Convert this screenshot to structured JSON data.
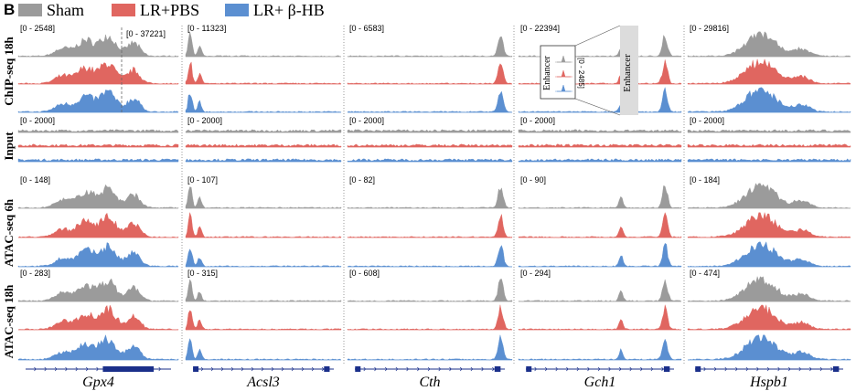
{
  "panel_label": "B",
  "legend": [
    {
      "label": "Sham",
      "color": "#9b9b9b"
    },
    {
      "label": "LR+PBS",
      "color": "#e06660"
    },
    {
      "label": "LR+ β-HB",
      "color": "#5b8fd1"
    }
  ],
  "colors": {
    "gene_model": "#1a2f8a",
    "enhancer_box": "#dcdcdc",
    "divider": "#555555"
  },
  "rows": [
    {
      "label": "ChIP-seq 18h",
      "tracks": 3
    },
    {
      "label": "Input",
      "tracks": 3
    },
    {
      "label": "ATAC-seq 6h",
      "tracks": 3
    },
    {
      "label": "ATAC-seq 18h",
      "tracks": 3
    }
  ],
  "genes": [
    {
      "name": "Gpx4",
      "ranges": [
        "[0 - 2548]",
        "[0 - 2000]",
        "[0 - 148]",
        "[0 - 283]"
      ],
      "extra_range": "[0 - 37221]",
      "peaks": [
        [
          0.28,
          0.35,
          0.05
        ],
        [
          0.42,
          0.7,
          0.05
        ],
        [
          0.56,
          0.9,
          0.05
        ],
        [
          0.72,
          0.6,
          0.04
        ]
      ]
    },
    {
      "name": "Acsl3",
      "ranges": [
        "[0 - 11323]",
        "[0 - 2000]",
        "[0 - 107]",
        "[0 - 315]"
      ],
      "peaks": [
        [
          0.03,
          1.0,
          0.012
        ],
        [
          0.09,
          0.45,
          0.012
        ]
      ]
    },
    {
      "name": "Cth",
      "ranges": [
        "[0 - 6583]",
        "[0 - 2000]",
        "[0 - 82]",
        "[0 - 608]"
      ],
      "peaks": [
        [
          0.93,
          1.0,
          0.015
        ]
      ]
    },
    {
      "name": "Gch1",
      "ranges": [
        "[0 - 22394]",
        "[0 - 2000]",
        "[0 - 90]",
        "[0 - 294]"
      ],
      "peaks": [
        [
          0.63,
          0.45,
          0.012
        ],
        [
          0.9,
          1.0,
          0.015
        ]
      ]
    },
    {
      "name": "Hspb1",
      "ranges": [
        "[0 - 29816]",
        "[0 - 2000]",
        "[0 - 184]",
        "[0 - 474]"
      ],
      "peaks": [
        [
          0.45,
          1.0,
          0.09
        ],
        [
          0.7,
          0.3,
          0.05
        ]
      ]
    }
  ],
  "inset": {
    "range": "[0 - 2485]",
    "label": "Enhancer"
  },
  "enhancer_label": "Enhancer"
}
